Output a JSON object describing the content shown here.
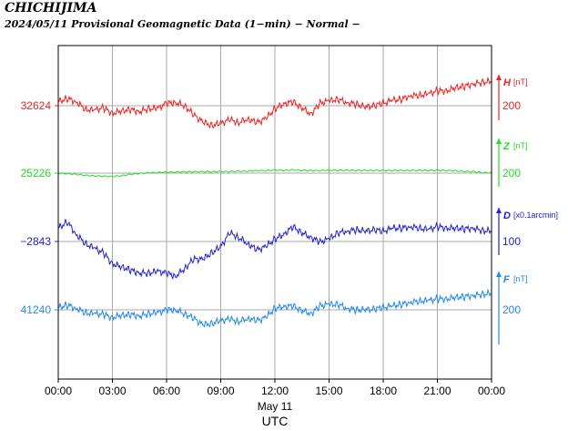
{
  "header": {
    "station": "CHICHIJIMA",
    "subtitle": "2024/05/11  Provisional Geomagnetic Data (1−min)  − Normal −"
  },
  "colors": {
    "H": "#ee2222",
    "Z": "#22dd22",
    "D": "#2222cc",
    "F": "#2288ee"
  },
  "chart_data": {
    "type": "line",
    "x_ticks": [
      "00:00",
      "03:00",
      "06:00",
      "09:00",
      "12:00",
      "15:00",
      "18:00",
      "21:00",
      "00:00"
    ],
    "x_range_hours": [
      0,
      24
    ],
    "date_label": "May 11",
    "xlabel": "UTC",
    "grid": true,
    "series": [
      {
        "name": "H",
        "unit": "[nT]",
        "base_label": "32624",
        "scale_label": "200",
        "x": [
          0,
          0.5,
          1,
          1.5,
          2,
          2.5,
          3,
          3.5,
          4,
          4.5,
          5,
          5.5,
          6,
          6.5,
          7,
          7.5,
          8,
          8.5,
          9,
          9.5,
          10,
          10.5,
          11,
          11.5,
          12,
          12.5,
          13,
          13.5,
          14,
          14.5,
          15,
          15.5,
          16,
          16.5,
          17,
          17.5,
          18,
          18.5,
          19,
          19.5,
          20,
          20.5,
          21,
          21.5,
          22,
          22.5,
          23,
          23.5,
          24
        ],
        "y": [
          32650,
          32670,
          32650,
          32600,
          32595,
          32610,
          32575,
          32590,
          32600,
          32585,
          32605,
          32605,
          32640,
          32645,
          32625,
          32565,
          32520,
          32495,
          32510,
          32535,
          32515,
          32540,
          32515,
          32540,
          32605,
          32635,
          32650,
          32610,
          32570,
          32640,
          32655,
          32665,
          32645,
          32635,
          32615,
          32625,
          32640,
          32660,
          32665,
          32690,
          32690,
          32700,
          32720,
          32720,
          32740,
          32750,
          32765,
          32775,
          32780
        ]
      },
      {
        "name": "Z",
        "unit": "[nT]",
        "base_label": "25226",
        "scale_label": "200",
        "x": [
          0,
          0.5,
          1,
          1.5,
          2,
          2.5,
          3,
          3.5,
          4,
          4.5,
          5,
          5.5,
          6,
          6.5,
          7,
          7.5,
          8,
          8.5,
          9,
          9.5,
          10,
          10.5,
          11,
          11.5,
          12,
          12.5,
          13,
          13.5,
          14,
          14.5,
          15,
          15.5,
          16,
          16.5,
          17,
          17.5,
          18,
          18.5,
          19,
          19.5,
          20,
          20.5,
          21,
          21.5,
          22,
          22.5,
          23,
          23.5,
          24
        ],
        "y": [
          25226,
          25222,
          25218,
          25212,
          25208,
          25206,
          25204,
          25210,
          25218,
          25224,
          25228,
          25230,
          25232,
          25233,
          25234,
          25235,
          25235,
          25235,
          25236,
          25237,
          25238,
          25240,
          25241,
          25242,
          25246,
          25244,
          25247,
          25244,
          25242,
          25243,
          25245,
          25245,
          25244,
          25244,
          25244,
          25243,
          25243,
          25243,
          25243,
          25243,
          25244,
          25244,
          25244,
          25243,
          25241,
          25238,
          25235,
          25230,
          25228
        ]
      },
      {
        "name": "D",
        "unit": "[x0.1arcmin]",
        "base_label": "−2843",
        "scale_label": "100",
        "x": [
          0,
          0.5,
          1,
          1.5,
          2,
          2.5,
          3,
          3.5,
          4,
          4.5,
          5,
          5.5,
          6,
          6.5,
          7,
          7.5,
          8,
          8.5,
          9,
          9.5,
          10,
          10.5,
          11,
          11.5,
          12,
          12.5,
          13,
          13.5,
          14,
          14.5,
          15,
          15.5,
          16,
          16.5,
          17,
          17.5,
          18,
          18.5,
          19,
          19.5,
          20,
          20.5,
          21,
          21.5,
          22,
          22.5,
          23,
          23.5,
          24
        ],
        "y": [
          -2800,
          -2780,
          -2820,
          -2850,
          -2865,
          -2880,
          -2915,
          -2925,
          -2935,
          -2945,
          -2945,
          -2940,
          -2945,
          -2955,
          -2930,
          -2900,
          -2900,
          -2880,
          -2860,
          -2815,
          -2830,
          -2850,
          -2870,
          -2860,
          -2835,
          -2820,
          -2795,
          -2815,
          -2830,
          -2845,
          -2835,
          -2815,
          -2810,
          -2805,
          -2810,
          -2805,
          -2810,
          -2800,
          -2800,
          -2795,
          -2800,
          -2805,
          -2795,
          -2800,
          -2800,
          -2802,
          -2800,
          -2808,
          -2810
        ]
      },
      {
        "name": "F",
        "unit": "[nT]",
        "base_label": "41240",
        "scale_label": "200",
        "x": [
          0,
          0.5,
          1,
          1.5,
          2,
          2.5,
          3,
          3.5,
          4,
          4.5,
          5,
          5.5,
          6,
          6.5,
          7,
          7.5,
          8,
          8.5,
          9,
          9.5,
          10,
          10.5,
          11,
          11.5,
          12,
          12.5,
          13,
          13.5,
          14,
          14.5,
          15,
          15.5,
          16,
          16.5,
          17,
          17.5,
          18,
          18.5,
          19,
          19.5,
          20,
          20.5,
          21,
          21.5,
          22,
          22.5,
          23,
          23.5,
          24
        ],
        "y": [
          41255,
          41270,
          41250,
          41220,
          41215,
          41210,
          41190,
          41205,
          41210,
          41200,
          41215,
          41220,
          41240,
          41240,
          41215,
          41185,
          41145,
          41150,
          41170,
          41180,
          41165,
          41185,
          41170,
          41190,
          41250,
          41260,
          41265,
          41235,
          41215,
          41265,
          41275,
          41275,
          41250,
          41240,
          41240,
          41245,
          41255,
          41265,
          41275,
          41290,
          41295,
          41300,
          41310,
          41310,
          41320,
          41325,
          41333,
          41340,
          41345
        ]
      }
    ]
  }
}
